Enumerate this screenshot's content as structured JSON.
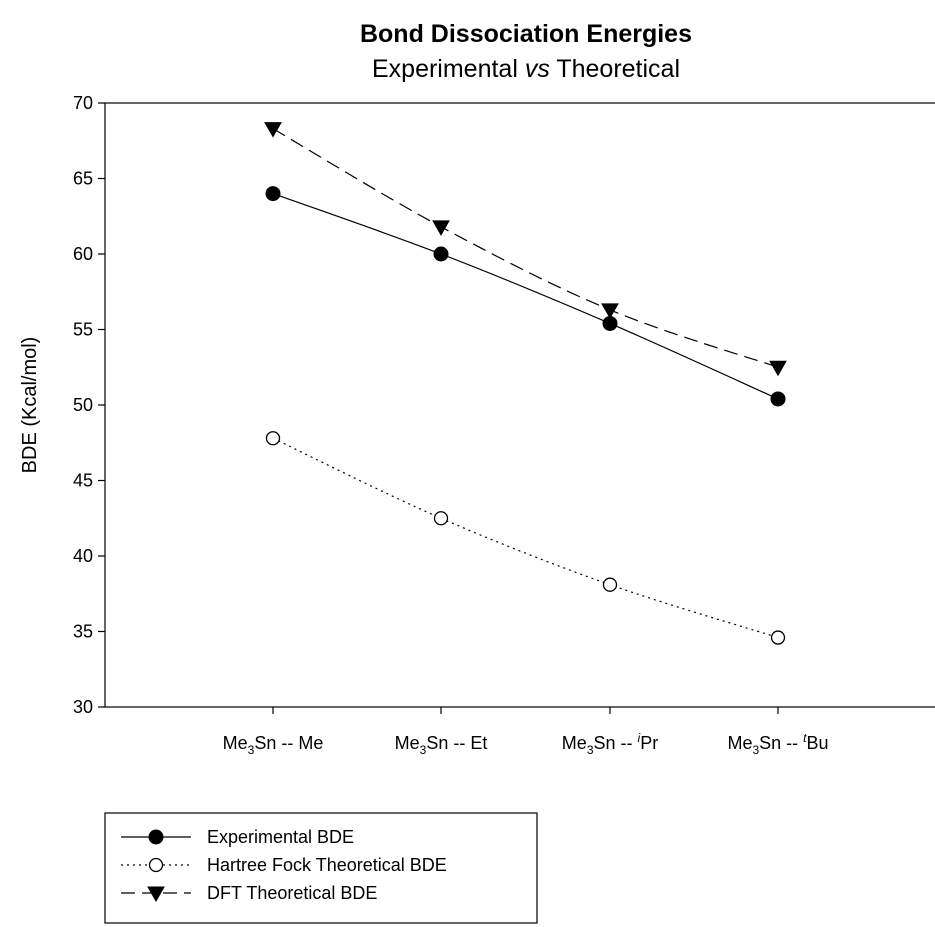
{
  "chart_data": {
    "type": "line",
    "title": "Bond Dissociation Energies",
    "subtitle_parts": [
      "Experimental ",
      "vs",
      " Theoretical"
    ],
    "ylabel": "BDE (Kcal/mol)",
    "xlabel": "",
    "ylim": [
      30,
      70
    ],
    "yticks": [
      30,
      35,
      40,
      45,
      50,
      55,
      60,
      65,
      70
    ],
    "categories": [
      {
        "prefix": "Me",
        "sub": "3",
        "mid": "Sn -- ",
        "sup": "",
        "suffix": "Me"
      },
      {
        "prefix": "Me",
        "sub": "3",
        "mid": "Sn -- ",
        "sup": "",
        "suffix": "Et"
      },
      {
        "prefix": "Me",
        "sub": "3",
        "mid": "Sn -- ",
        "sup": "i",
        "suffix": "Pr"
      },
      {
        "prefix": "Me",
        "sub": "3",
        "mid": "Sn -- ",
        "sup": "t",
        "suffix": "Bu"
      }
    ],
    "series": [
      {
        "name": "Experimental BDE",
        "values": [
          64.0,
          60.0,
          55.4,
          50.4
        ],
        "marker": "filled-circle",
        "line": "solid",
        "color": "#000000"
      },
      {
        "name": "Hartree Fock Theoretical BDE",
        "values": [
          47.8,
          42.5,
          38.1,
          34.6
        ],
        "marker": "open-circle",
        "line": "dotted",
        "color": "#000000"
      },
      {
        "name": "DFT Theoretical BDE",
        "values": [
          68.3,
          61.8,
          56.3,
          52.5
        ],
        "marker": "filled-triangle-down",
        "line": "dashed",
        "color": "#000000"
      }
    ],
    "grid": false,
    "legend_position": "bottom-left"
  }
}
